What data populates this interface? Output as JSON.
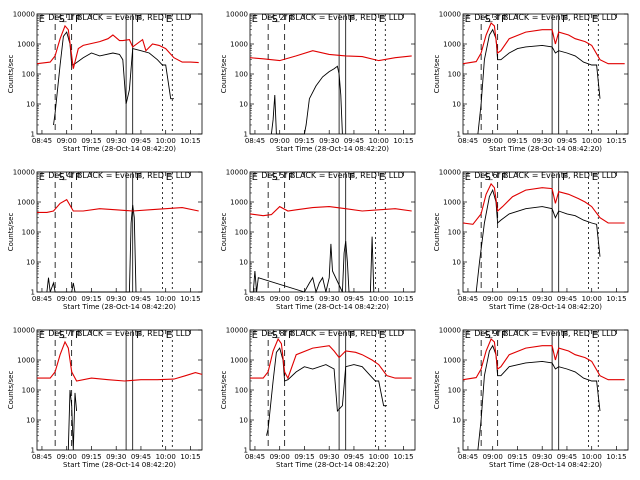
{
  "figure": {
    "panels": [
      {
        "id": "det1",
        "title": "Det_1f BLACK = Events, RED = LLD"
      },
      {
        "id": "det2",
        "title": "Det_2f BLACK = Events, RED = LLD"
      },
      {
        "id": "det3",
        "title": "Det_3f BLACK = Events, RED = LLD"
      },
      {
        "id": "det4",
        "title": "Det_4f BLACK = Events, RED = LLD"
      },
      {
        "id": "det5",
        "title": "Det_5f BLACK = Events, RED = LLD"
      },
      {
        "id": "det6",
        "title": "Det_6f BLACK = Events, RED = LLD"
      },
      {
        "id": "det7",
        "title": "Det_7f BLACK = Events, RED = LLD"
      },
      {
        "id": "det8",
        "title": "Det_8f BLACK = Events, RED = LLD"
      },
      {
        "id": "det9",
        "title": "Det_9f BLACK = Events, RED = LLD"
      }
    ],
    "ylabel": "Counts/sec",
    "xlabel": "Start Time (28-Oct-14 08:42:20)",
    "xticks": [
      "08:45",
      "09:00",
      "09:15",
      "09:30",
      "09:45",
      "10:00",
      "10:15"
    ],
    "yticks": [
      "1",
      "10",
      "100",
      "1000",
      "10000"
    ],
    "markers": {
      "solid": "S",
      "flare": "F",
      "end": "E"
    },
    "colors": {
      "events": "#000000",
      "lld": "#e00000"
    }
  },
  "chart_data": [
    {
      "type": "line",
      "title": "Det_1f BLACK = Events, RED = LLD",
      "xlabel": "Start Time (28-Oct-14 08:42:20)",
      "ylabel": "Counts/sec",
      "yscale": "log",
      "ylim": [
        1,
        10000
      ],
      "xlim": [
        "08:42",
        "10:22"
      ],
      "series": [
        {
          "name": "Events",
          "x": [
            "08:52",
            "08:53",
            "08:56",
            "08:58",
            "09:00",
            "09:02",
            "09:03",
            "09:05",
            "09:10",
            "09:15",
            "09:20",
            "09:28",
            "09:32",
            "09:34",
            "09:36",
            "09:38",
            "09:40",
            "09:45",
            "09:50",
            "09:55",
            "09:58",
            "10:00",
            "10:03",
            "10:05"
          ],
          "y": [
            2,
            5,
            200,
            1800,
            2500,
            1000,
            200,
            220,
            350,
            500,
            400,
            500,
            450,
            300,
            10,
            30,
            700,
            600,
            500,
            300,
            200,
            200,
            15,
            15
          ]
        },
        {
          "name": "LLD",
          "x": [
            "08:42",
            "08:50",
            "08:53",
            "08:56",
            "08:59",
            "09:01",
            "09:03",
            "09:04",
            "09:07",
            "09:10",
            "09:20",
            "09:25",
            "09:28",
            "09:32",
            "09:34",
            "09:38",
            "09:40",
            "09:46",
            "09:48",
            "09:52",
            "09:56",
            "10:00",
            "10:05",
            "10:10",
            "10:15",
            "10:20"
          ],
          "y": [
            220,
            250,
            400,
            1500,
            4000,
            3000,
            400,
            150,
            700,
            900,
            1200,
            1500,
            2000,
            1300,
            1300,
            1400,
            800,
            1400,
            600,
            1000,
            900,
            700,
            350,
            250,
            250,
            240
          ]
        }
      ]
    },
    {
      "type": "line",
      "title": "Det_2f BLACK = Events, RED = LLD",
      "xlabel": "Start Time (28-Oct-14 08:42:20)",
      "ylabel": "Counts/sec",
      "yscale": "log",
      "ylim": [
        1,
        10000
      ],
      "xlim": [
        "08:42",
        "10:22"
      ],
      "series": [
        {
          "name": "Events",
          "x": [
            "08:55",
            "08:56",
            "08:57",
            "08:58",
            "09:15",
            "09:16",
            "09:18",
            "09:22",
            "09:26",
            "09:30",
            "09:33",
            "09:35",
            "09:36",
            "09:37",
            "09:38"
          ],
          "y": [
            1,
            3,
            20,
            1,
            1,
            2,
            15,
            40,
            80,
            120,
            150,
            180,
            100,
            20,
            1
          ]
        },
        {
          "name": "LLD",
          "x": [
            "08:42",
            "08:50",
            "09:00",
            "09:10",
            "09:20",
            "09:30",
            "09:40",
            "09:50",
            "10:00",
            "10:10",
            "10:20"
          ],
          "y": [
            350,
            320,
            280,
            400,
            600,
            450,
            400,
            380,
            280,
            350,
            400
          ]
        }
      ]
    },
    {
      "type": "line",
      "title": "Det_3f BLACK = Events, RED = LLD",
      "xlabel": "Start Time (28-Oct-14 08:42:20)",
      "ylabel": "Counts/sec",
      "yscale": "log",
      "ylim": [
        1,
        10000
      ],
      "xlim": [
        "08:42",
        "10:22"
      ],
      "series": [
        {
          "name": "Events",
          "x": [
            "08:51",
            "08:53",
            "08:55",
            "08:58",
            "09:00",
            "09:02",
            "09:03",
            "09:05",
            "09:10",
            "09:15",
            "09:20",
            "09:30",
            "09:36",
            "09:38",
            "09:40",
            "09:45",
            "09:50",
            "09:55",
            "10:00",
            "10:03",
            "10:05"
          ],
          "y": [
            1,
            10,
            300,
            2000,
            3000,
            1500,
            300,
            300,
            500,
            700,
            800,
            900,
            800,
            500,
            600,
            500,
            400,
            250,
            200,
            200,
            15
          ]
        },
        {
          "name": "LLD",
          "x": [
            "08:42",
            "08:50",
            "08:53",
            "08:56",
            "08:59",
            "09:01",
            "09:03",
            "09:05",
            "09:10",
            "09:20",
            "09:30",
            "09:36",
            "09:38",
            "09:40",
            "09:46",
            "09:50",
            "09:56",
            "10:00",
            "10:05",
            "10:10",
            "10:20"
          ],
          "y": [
            220,
            260,
            500,
            2000,
            5000,
            4000,
            500,
            600,
            1500,
            2500,
            3000,
            3000,
            1000,
            2500,
            2000,
            1500,
            1200,
            900,
            300,
            220,
            220
          ]
        }
      ]
    },
    {
      "type": "line",
      "title": "Det_4f BLACK = Events, RED = LLD",
      "xlabel": "Start Time (28-Oct-14 08:42:20)",
      "ylabel": "Counts/sec",
      "yscale": "log",
      "ylim": [
        1,
        10000
      ],
      "xlim": [
        "08:42",
        "10:22"
      ],
      "series": [
        {
          "name": "Events",
          "x": [
            "08:48",
            "08:49",
            "08:50",
            "08:52",
            "08:53",
            "09:03",
            "09:04",
            "09:05",
            "09:06",
            "09:38",
            "09:39",
            "09:40",
            "09:41",
            "09:42"
          ],
          "y": [
            1,
            3,
            1,
            2,
            1,
            1,
            2,
            1,
            1,
            1,
            200,
            800,
            300,
            1
          ]
        },
        {
          "name": "LLD",
          "x": [
            "08:42",
            "08:48",
            "08:52",
            "08:56",
            "09:00",
            "09:04",
            "09:10",
            "09:20",
            "09:30",
            "09:40",
            "09:50",
            "10:00",
            "10:10",
            "10:20"
          ],
          "y": [
            450,
            450,
            500,
            900,
            1200,
            500,
            500,
            600,
            550,
            500,
            550,
            600,
            650,
            500
          ]
        }
      ]
    },
    {
      "type": "line",
      "title": "Det_5f BLACK = Events, RED = LLD",
      "xlabel": "Start Time (28-Oct-14 08:42:20)",
      "ylabel": "Counts/sec",
      "yscale": "log",
      "ylim": [
        1,
        10000
      ],
      "xlim": [
        "08:42",
        "10:22"
      ],
      "series": [
        {
          "name": "Events",
          "x": [
            "08:44",
            "08:45",
            "08:46",
            "08:47",
            "09:15",
            "09:18",
            "09:20",
            "09:22",
            "09:24",
            "09:26",
            "09:28",
            "09:30",
            "09:31",
            "09:32",
            "09:38",
            "09:39",
            "09:40",
            "09:41",
            "09:42",
            "09:55",
            "09:56",
            "09:57"
          ],
          "y": [
            1,
            5,
            1,
            3,
            1,
            2,
            3,
            1,
            2,
            3,
            1,
            3,
            40,
            5,
            1,
            20,
            50,
            10,
            1,
            1,
            70,
            1
          ]
        },
        {
          "name": "LLD",
          "x": [
            "08:42",
            "08:50",
            "08:55",
            "09:00",
            "09:05",
            "09:10",
            "09:20",
            "09:30",
            "09:40",
            "09:50",
            "10:00",
            "10:10",
            "10:20"
          ],
          "y": [
            400,
            350,
            380,
            700,
            500,
            550,
            650,
            700,
            600,
            500,
            550,
            600,
            500
          ]
        }
      ]
    },
    {
      "type": "line",
      "title": "Det_6f BLACK = Events, RED = LLD",
      "xlabel": "Start Time (28-Oct-14 08:42:20)",
      "ylabel": "Counts/sec",
      "yscale": "log",
      "ylim": [
        1,
        10000
      ],
      "xlim": [
        "08:42",
        "10:22"
      ],
      "series": [
        {
          "name": "Events",
          "x": [
            "08:50",
            "08:52",
            "08:55",
            "08:58",
            "09:00",
            "09:02",
            "09:03",
            "09:05",
            "09:10",
            "09:20",
            "09:30",
            "09:36",
            "09:38",
            "09:40",
            "09:45",
            "09:50",
            "09:55",
            "10:00",
            "10:03",
            "10:05"
          ],
          "y": [
            1,
            10,
            200,
            1500,
            2500,
            1000,
            200,
            250,
            400,
            600,
            700,
            600,
            300,
            500,
            400,
            350,
            250,
            200,
            180,
            15
          ]
        },
        {
          "name": "LLD",
          "x": [
            "08:42",
            "08:48",
            "08:53",
            "08:56",
            "08:59",
            "09:01",
            "09:03",
            "09:06",
            "09:12",
            "09:20",
            "09:30",
            "09:36",
            "09:38",
            "09:40",
            "09:46",
            "09:52",
            "09:56",
            "10:00",
            "10:05",
            "10:10",
            "10:20"
          ],
          "y": [
            200,
            180,
            400,
            1800,
            4000,
            3000,
            500,
            700,
            1500,
            2500,
            3000,
            2800,
            900,
            2200,
            1800,
            1300,
            1000,
            700,
            300,
            200,
            200
          ]
        }
      ]
    },
    {
      "type": "line",
      "title": "Det_7f BLACK = Events, RED = LLD",
      "xlabel": "Start Time (28-Oct-14 08:42:20)",
      "ylabel": "Counts/sec",
      "yscale": "log",
      "ylim": [
        1,
        10000
      ],
      "xlim": [
        "08:42",
        "10:22"
      ],
      "series": [
        {
          "name": "Events",
          "x": [
            "09:01",
            "09:02",
            "09:03",
            "09:04",
            "09:05",
            "09:06"
          ],
          "y": [
            1,
            100,
            30,
            1,
            80,
            20
          ]
        },
        {
          "name": "LLD",
          "x": [
            "08:42",
            "08:50",
            "08:53",
            "08:56",
            "08:59",
            "09:01",
            "09:03",
            "09:06",
            "09:15",
            "09:25",
            "09:35",
            "09:45",
            "09:55",
            "10:05",
            "10:12",
            "10:18",
            "10:22"
          ],
          "y": [
            250,
            250,
            400,
            1500,
            4000,
            2500,
            400,
            200,
            250,
            220,
            200,
            220,
            220,
            230,
            300,
            380,
            330
          ]
        }
      ]
    },
    {
      "type": "line",
      "title": "Det_8f BLACK = Events, RED = LLD",
      "xlabel": "Start Time (28-Oct-14 08:42:20)",
      "ylabel": "Counts/sec",
      "yscale": "log",
      "ylim": [
        1,
        10000
      ],
      "xlim": [
        "08:42",
        "10:22"
      ],
      "series": [
        {
          "name": "Events",
          "x": [
            "08:52",
            "08:53",
            "08:56",
            "08:58",
            "09:00",
            "09:02",
            "09:03",
            "09:05",
            "09:10",
            "09:15",
            "09:20",
            "09:28",
            "09:33",
            "09:35",
            "09:38",
            "09:40",
            "09:45",
            "09:50",
            "09:55",
            "09:58",
            "10:00",
            "10:03",
            "10:05"
          ],
          "y": [
            3,
            5,
            200,
            1800,
            2500,
            1000,
            200,
            220,
            400,
            600,
            500,
            700,
            500,
            20,
            30,
            600,
            700,
            600,
            300,
            200,
            200,
            30,
            30
          ]
        },
        {
          "name": "LLD",
          "x": [
            "08:42",
            "08:50",
            "08:53",
            "08:56",
            "08:59",
            "09:01",
            "09:03",
            "09:05",
            "09:10",
            "09:20",
            "09:30",
            "09:33",
            "09:36",
            "09:40",
            "09:46",
            "09:50",
            "09:56",
            "10:00",
            "10:05",
            "10:10",
            "10:20"
          ],
          "y": [
            250,
            250,
            400,
            2000,
            5000,
            3500,
            400,
            250,
            1500,
            2500,
            3000,
            2000,
            1200,
            2000,
            1800,
            1500,
            1000,
            700,
            300,
            250,
            250
          ]
        }
      ]
    },
    {
      "type": "line",
      "title": "Det_9f BLACK = Events, RED = LLD",
      "xlabel": "Start Time (28-Oct-14 08:42:20)",
      "ylabel": "Counts/sec",
      "yscale": "log",
      "ylim": [
        1,
        10000
      ],
      "xlim": [
        "08:42",
        "10:22"
      ],
      "series": [
        {
          "name": "Events",
          "x": [
            "08:51",
            "08:53",
            "08:55",
            "08:58",
            "09:00",
            "09:02",
            "09:03",
            "09:05",
            "09:10",
            "09:20",
            "09:30",
            "09:36",
            "09:38",
            "09:40",
            "09:45",
            "09:50",
            "09:55",
            "10:00",
            "10:03",
            "10:05"
          ],
          "y": [
            1,
            10,
            300,
            2000,
            3000,
            1500,
            300,
            300,
            600,
            800,
            900,
            800,
            500,
            600,
            500,
            400,
            250,
            200,
            200,
            20
          ]
        },
        {
          "name": "LLD",
          "x": [
            "08:42",
            "08:50",
            "08:53",
            "08:56",
            "08:59",
            "09:01",
            "09:03",
            "09:05",
            "09:10",
            "09:20",
            "09:30",
            "09:36",
            "09:38",
            "09:40",
            "09:46",
            "09:50",
            "09:56",
            "10:00",
            "10:05",
            "10:10",
            "10:20"
          ],
          "y": [
            220,
            260,
            500,
            2000,
            5000,
            4000,
            500,
            600,
            1500,
            2500,
            3000,
            3000,
            1000,
            2500,
            2000,
            1500,
            1200,
            900,
            300,
            220,
            220
          ]
        }
      ]
    }
  ]
}
